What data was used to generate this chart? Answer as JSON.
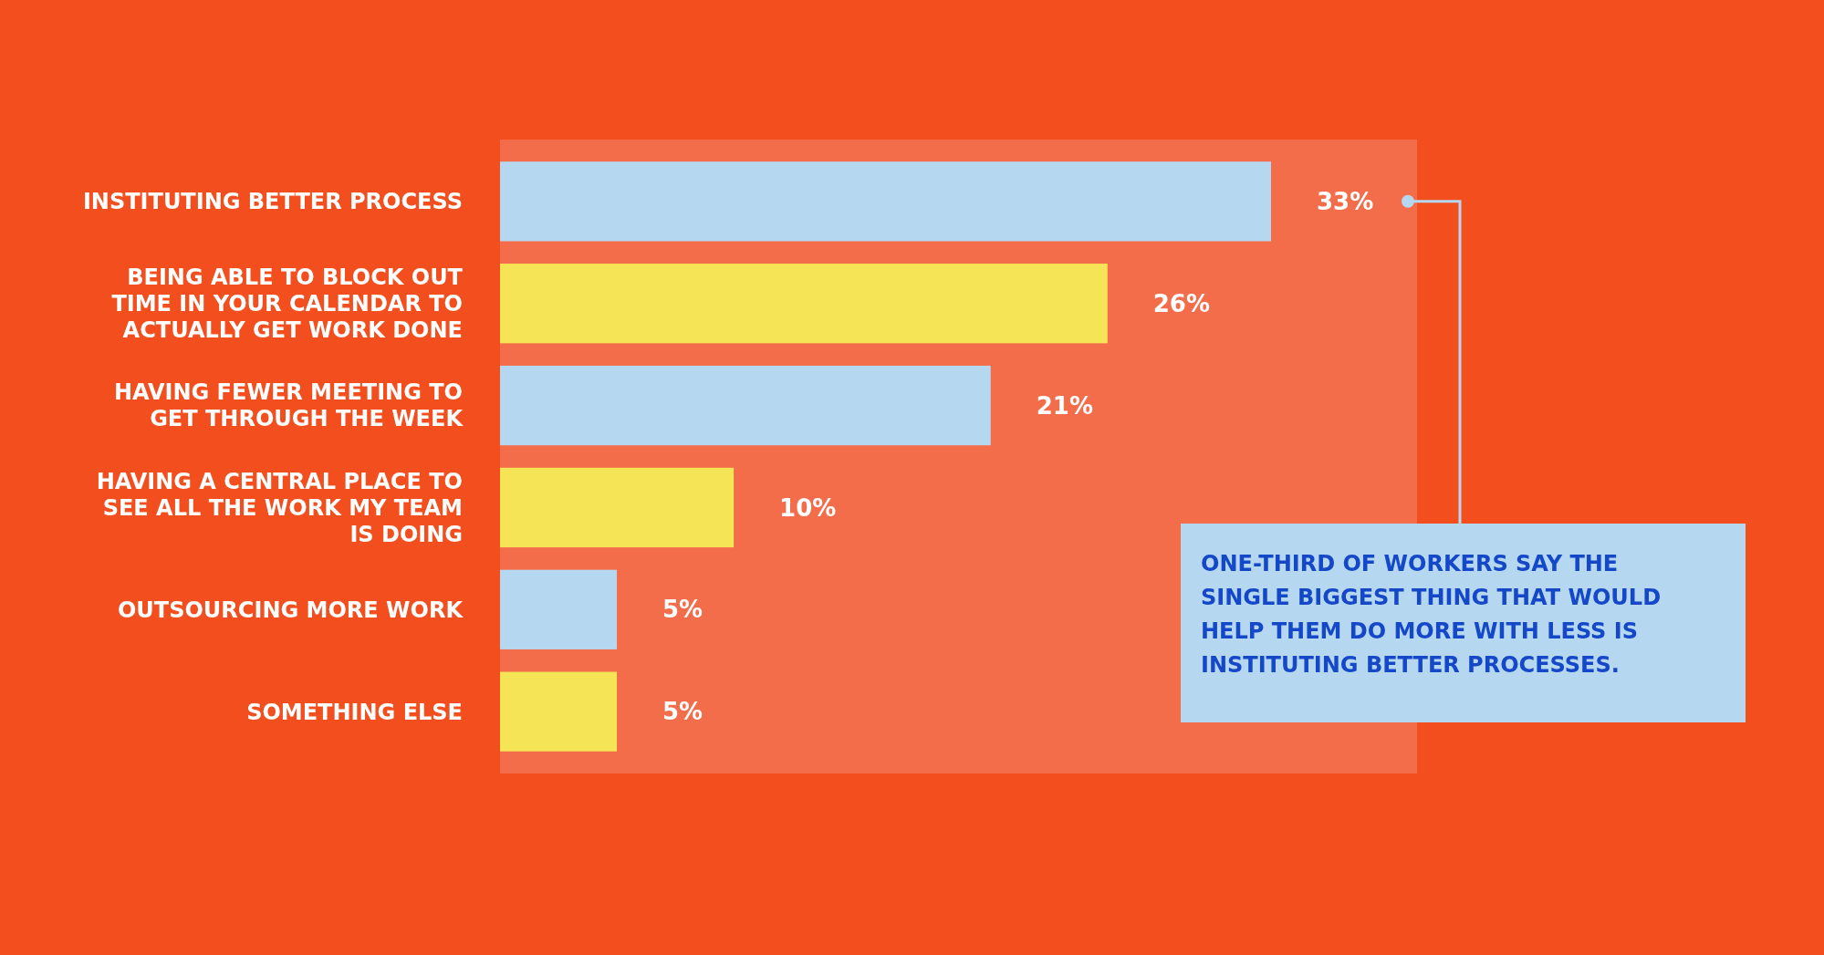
{
  "chart_data": {
    "type": "bar",
    "orientation": "horizontal",
    "categories": [
      "INSTITUTING BETTER PROCESS",
      "BEING ABLE TO BLOCK OUT TIME IN YOUR CALENDAR TO ACTUALLY GET WORK DONE",
      "HAVING FEWER MEETING TO GET THROUGH THE WEEK",
      "HAVING A CENTRAL PLACE TO SEE ALL THE WORK MY TEAM IS DOING",
      "OUTSOURCING MORE WORK",
      "SOMETHING ELSE"
    ],
    "values": [
      33,
      26,
      21,
      10,
      5,
      5
    ],
    "value_labels": [
      "33%",
      "26%",
      "21%",
      "10%",
      "5%",
      "5%"
    ],
    "colors": [
      "#b5d7f0",
      "#f5e556",
      "#b5d7f0",
      "#f5e556",
      "#b5d7f0",
      "#f5e556"
    ],
    "annotations": [
      "ONE-THIRD OF WORKERS SAY THE SINGLE BIGGEST THING THAT WOULD HELP THEM DO MORE WITH LESS IS INSTITUTING BETTER PROCESSES."
    ]
  }
}
